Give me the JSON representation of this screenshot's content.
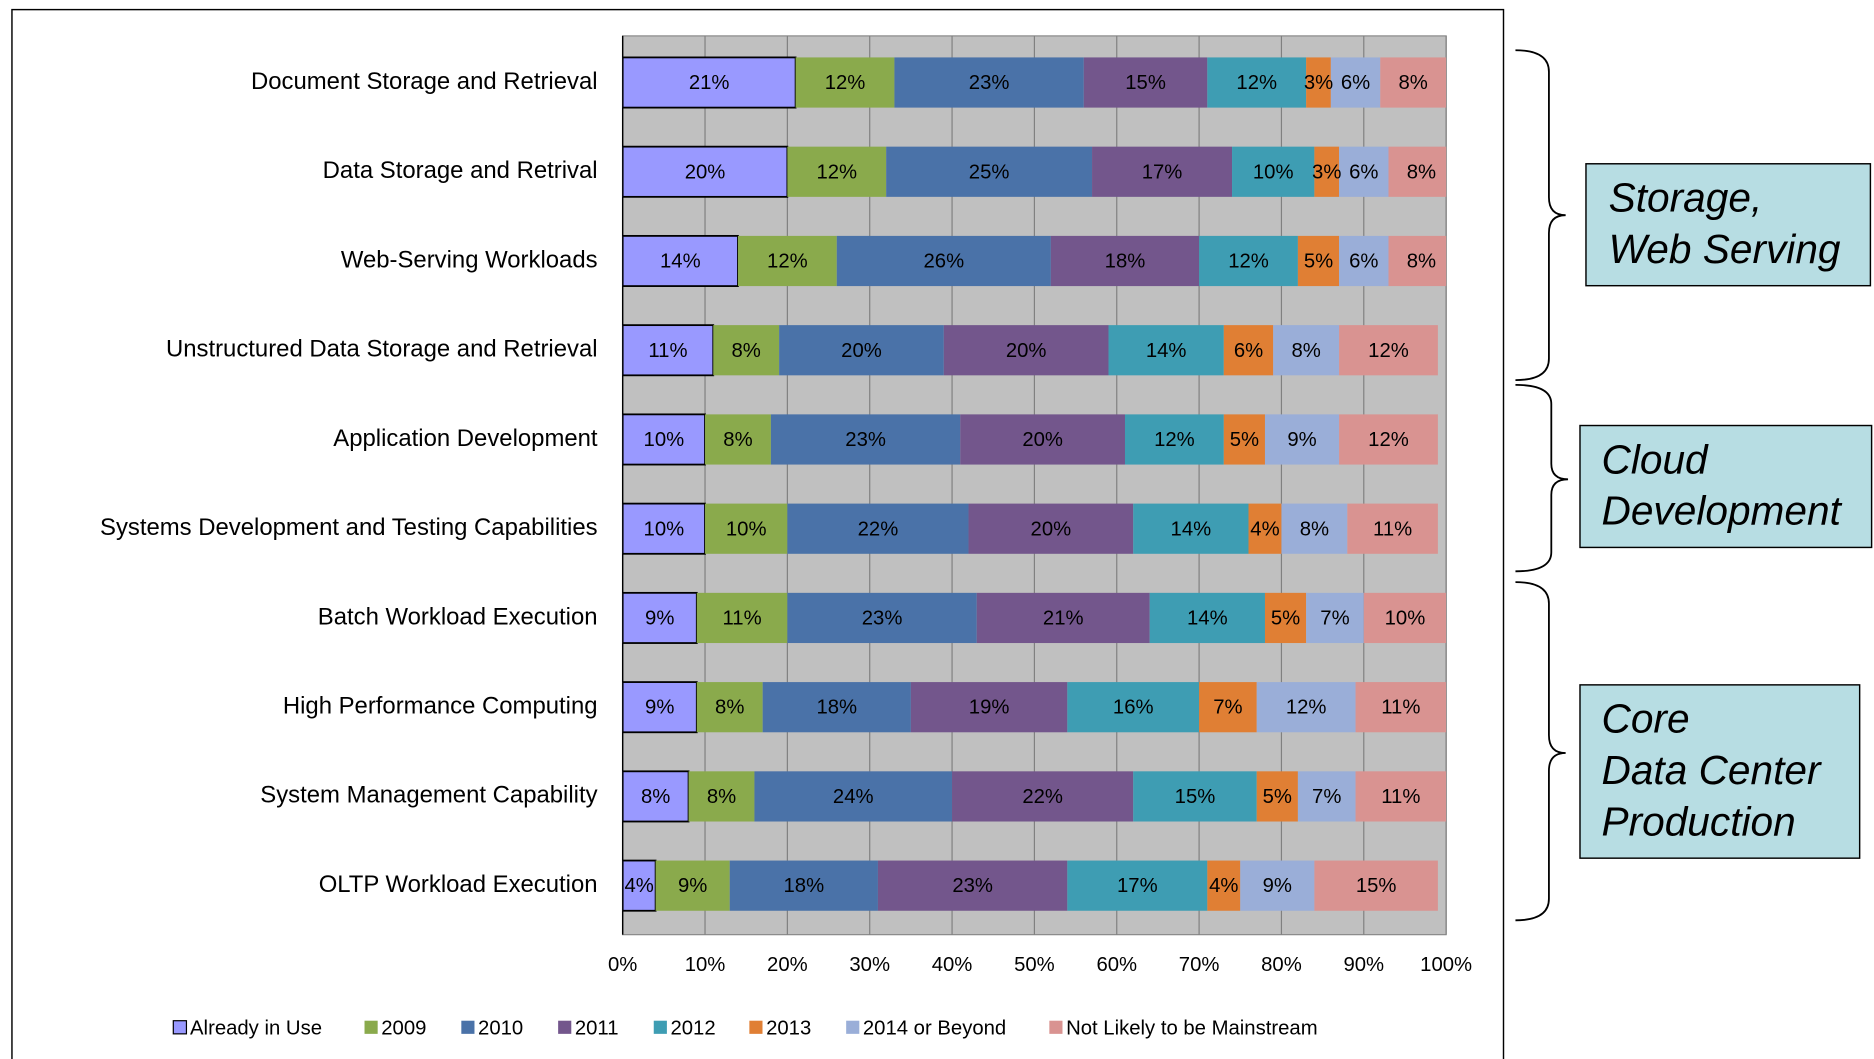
{
  "chart_data": {
    "type": "stacked_barh",
    "categories": [
      "Document Storage and Retrieval",
      "Data Storage and Retrival",
      "Web-Serving Workloads",
      "Unstructured Data Storage and Retrieval",
      "Application Development",
      "Systems Development and Testing Capabilities",
      "Batch Workload Execution",
      "High Performance Computing",
      "System Management Capability",
      "OLTP Workload Execution"
    ],
    "series": [
      {
        "name": "Already in Use",
        "color": "#9999ff",
        "values": [
          21,
          20,
          14,
          11,
          10,
          10,
          9,
          9,
          8,
          4
        ],
        "value_labels": [
          "21%",
          "20%",
          "14%",
          "11%",
          "10%",
          "10%",
          "9%",
          "9%",
          "8%",
          "4%"
        ]
      },
      {
        "name": "2009",
        "color": "#8aaa4c",
        "values": [
          12,
          12,
          12,
          8,
          8,
          10,
          11,
          8,
          8,
          9
        ],
        "value_labels": [
          "12%",
          "12%",
          "12%",
          "8%",
          "8%",
          "10%",
          "11%",
          "8%",
          "8%",
          "9%"
        ]
      },
      {
        "name": "2010",
        "color": "#4a72a8",
        "values": [
          23,
          25,
          26,
          20,
          23,
          22,
          23,
          18,
          24,
          18
        ],
        "value_labels": [
          "23%",
          "25%",
          "26%",
          "20%",
          "23%",
          "22%",
          "23%",
          "18%",
          "24%",
          "18%"
        ]
      },
      {
        "name": "2011",
        "color": "#73568c",
        "values": [
          15,
          17,
          18,
          20,
          20,
          20,
          21,
          19,
          22,
          23
        ],
        "value_labels": [
          "15%",
          "17%",
          "18%",
          "20%",
          "20%",
          "20%",
          "21%",
          "19%",
          "22%",
          "23%"
        ]
      },
      {
        "name": "2012",
        "color": "#3e9db3",
        "values": [
          12,
          10,
          12,
          14,
          12,
          14,
          14,
          16,
          15,
          17
        ],
        "value_labels": [
          "12%",
          "10%",
          "12%",
          "14%",
          "12%",
          "14%",
          "14%",
          "16%",
          "15%",
          "17%"
        ]
      },
      {
        "name": "2013",
        "color": "#e07f34",
        "values": [
          3,
          3,
          5,
          6,
          5,
          4,
          5,
          7,
          5,
          4
        ],
        "value_labels": [
          "3%",
          "3%",
          "5%",
          "6%",
          "5%",
          "4%",
          "5%",
          "7%",
          "5%",
          "4%"
        ]
      },
      {
        "name": "2014 or Beyond",
        "color": "#9aaed8",
        "values": [
          6,
          6,
          6,
          8,
          9,
          8,
          7,
          12,
          7,
          9
        ],
        "value_labels": [
          "6%",
          "6%",
          "6%",
          "8%",
          "9%",
          "8%",
          "7%",
          "12%",
          "7%",
          "9%"
        ]
      },
      {
        "name": "Not Likely to be Mainstream",
        "color": "#d99391",
        "values": [
          8,
          8,
          8,
          12,
          12,
          11,
          10,
          11,
          11,
          15
        ],
        "value_labels": [
          "8%",
          "8%",
          "8%",
          "12%",
          "12%",
          "11%",
          "10%",
          "11%",
          "11%",
          "15%"
        ]
      }
    ],
    "xlim": [
      0,
      100
    ],
    "xticks": [
      {
        "value": 0,
        "label": "0%"
      },
      {
        "value": 10,
        "label": "10%"
      },
      {
        "value": 20,
        "label": "20%"
      },
      {
        "value": 30,
        "label": "30%"
      },
      {
        "value": 40,
        "label": "40%"
      },
      {
        "value": 50,
        "label": "50%"
      },
      {
        "value": 60,
        "label": "60%"
      },
      {
        "value": 70,
        "label": "70%"
      },
      {
        "value": 80,
        "label": "80%"
      },
      {
        "value": 90,
        "label": "90%"
      },
      {
        "value": 100,
        "label": "100%"
      }
    ],
    "grid": true,
    "background": "#c0c0c0",
    "legend": "bottom",
    "annotations": [
      [
        "Storage,",
        "Web Serving"
      ],
      [
        "Cloud",
        "Development"
      ],
      [
        "Core",
        "Data Center",
        "Production"
      ]
    ]
  }
}
